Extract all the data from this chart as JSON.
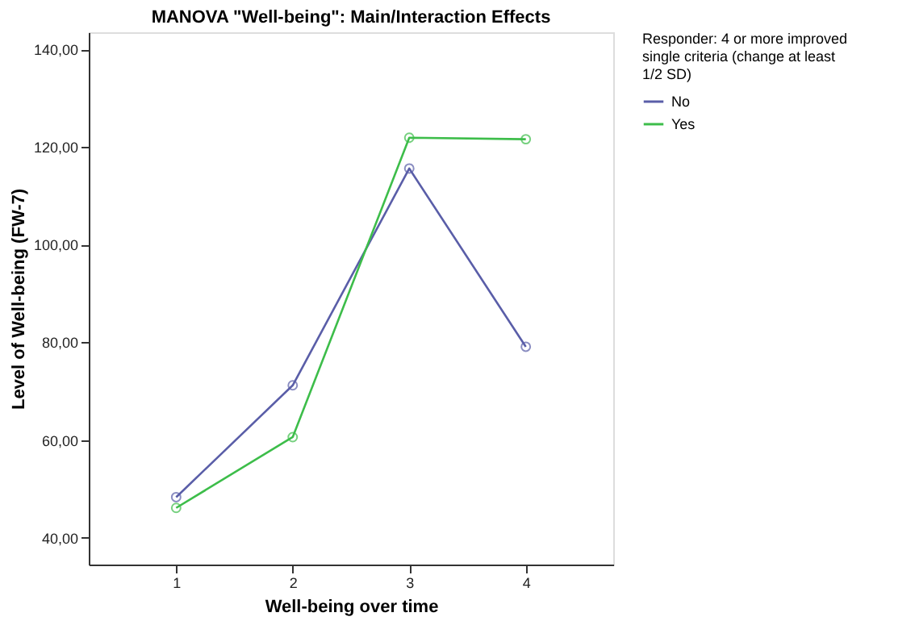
{
  "chart_data": {
    "type": "line",
    "title": "MANOVA \"Well-being\": Main/Interaction Effects",
    "xlabel": "Well-being over time",
    "ylabel": "Level of Well-being (FW-7)",
    "legend_title": "Responder: 4 or more improved single criteria (change at least 1/2 SD)",
    "categories": [
      "1",
      "2",
      "3",
      "4"
    ],
    "series": [
      {
        "name": "No",
        "color": "#5a5ea8",
        "values": [
          48.3,
          71.2,
          115.6,
          79.1
        ]
      },
      {
        "name": "Yes",
        "color": "#3dbd4a",
        "values": [
          46.1,
          60.6,
          121.9,
          121.6
        ]
      }
    ],
    "ylim": [
      34.5,
      143.5
    ],
    "yticks": [
      {
        "value": 40,
        "label": "40,00"
      },
      {
        "value": 60,
        "label": "60,00"
      },
      {
        "value": 80,
        "label": "80,00"
      },
      {
        "value": 100,
        "label": "100,00"
      },
      {
        "value": 120,
        "label": "120,00"
      },
      {
        "value": 140,
        "label": "140,00"
      }
    ],
    "grid": false,
    "legend": "top right",
    "marker": "circle",
    "line_style": "solid"
  }
}
